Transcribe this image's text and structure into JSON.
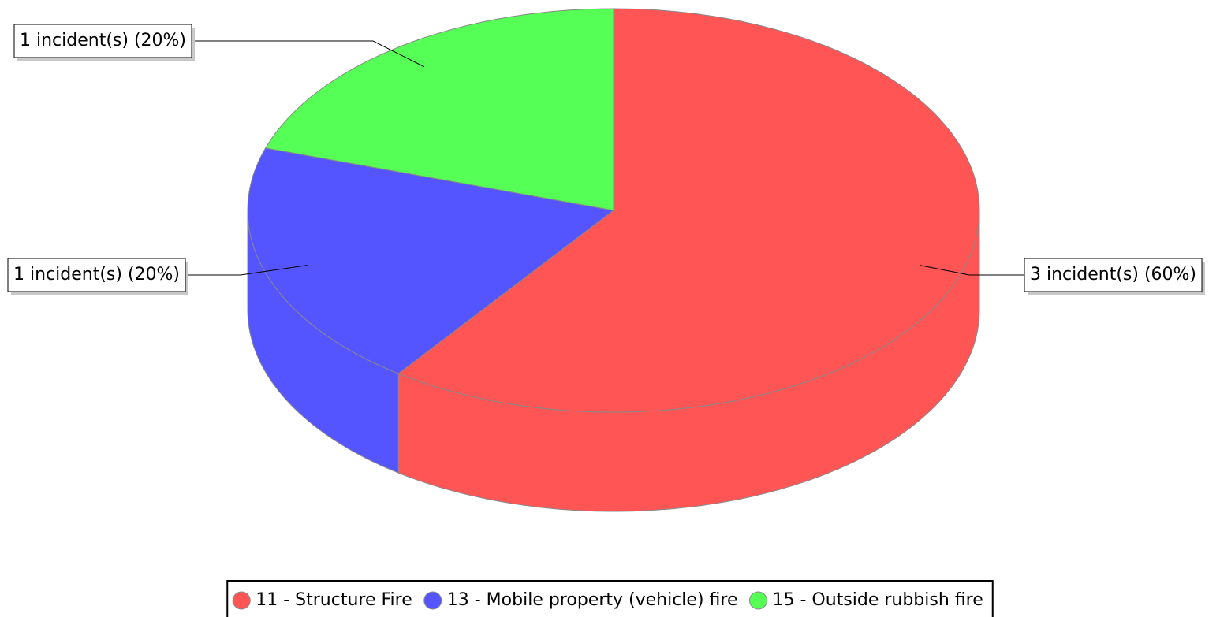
{
  "chart_data": {
    "type": "pie",
    "style": "3d",
    "categories": [
      "11 - Structure Fire",
      "13 - Mobile property (vehicle) fire",
      "15 - Outside rubbish fire"
    ],
    "values": [
      3,
      1,
      1
    ],
    "value_labels": [
      "3 incident(s) (60%)",
      "1 incident(s) (20%)",
      "1 incident(s) (20%)"
    ],
    "colors": [
      "#ff5555",
      "#5555ff",
      "#55ff55"
    ],
    "legend": "bottom"
  }
}
